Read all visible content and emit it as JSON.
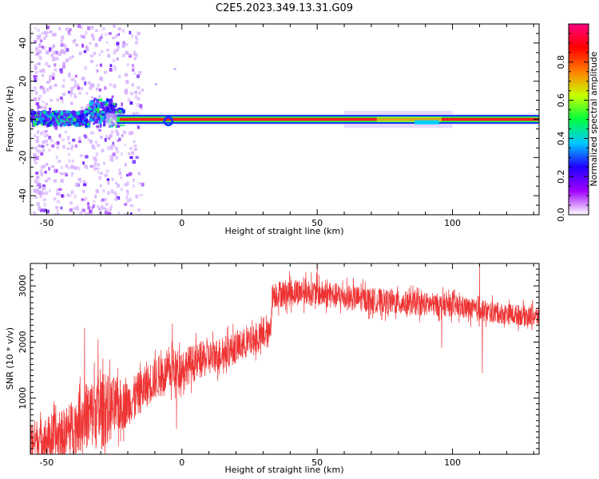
{
  "title": "C2E5.2023.349.13.31.G09",
  "chart_data": [
    {
      "type": "heatmap",
      "xlabel": "Height of straight line (km)",
      "ylabel": "Frequency (Hz)",
      "xlim": [
        -56,
        132
      ],
      "ylim": [
        -50,
        50
      ],
      "xticks": [
        "-50",
        "0",
        "50",
        "100"
      ],
      "yticks": [
        "40",
        "20",
        "0",
        "-20",
        "-40"
      ],
      "colorbar": {
        "label": "Normalized spectral amplitude",
        "range": [
          0.0,
          1.0
        ],
        "ticks": [
          "0.0",
          "0.2",
          "0.4",
          "0.6",
          "0.8"
        ],
        "colors": [
          "#ffffff",
          "#a000ff",
          "#2000ff",
          "#00c8ff",
          "#00ff40",
          "#c8ff00",
          "#ff8000",
          "#ff0000",
          "#ff0080"
        ]
      },
      "signal_band": {
        "frequency_hz": 0,
        "half_width_hz": 1.5,
        "start_km": -24,
        "end_km": 132
      },
      "grid": false
    },
    {
      "type": "line",
      "xlabel": "Height of straight line (km)",
      "ylabel": "SNR (10 * v/v)",
      "xlim": [
        -56,
        132
      ],
      "ylim": [
        0,
        3400
      ],
      "xticks": [
        "-50",
        "0",
        "50",
        "100"
      ],
      "yticks": [
        "3000",
        "2000",
        "1000"
      ],
      "color": "#ee3333",
      "trend": [
        {
          "x": -56,
          "y": 250
        },
        {
          "x": -45,
          "y": 300
        },
        {
          "x": -35,
          "y": 700
        },
        {
          "x": -20,
          "y": 900
        },
        {
          "x": -10,
          "y": 1350
        },
        {
          "x": 0,
          "y": 1550
        },
        {
          "x": 15,
          "y": 1800
        },
        {
          "x": 25,
          "y": 2000
        },
        {
          "x": 32.5,
          "y": 2150
        },
        {
          "x": 33.5,
          "y": 2850
        },
        {
          "x": 45,
          "y": 2900
        },
        {
          "x": 60,
          "y": 2800
        },
        {
          "x": 80,
          "y": 2700
        },
        {
          "x": 100,
          "y": 2650
        },
        {
          "x": 110,
          "y": 2550
        },
        {
          "x": 120,
          "y": 2500
        },
        {
          "x": 132,
          "y": 2450
        }
      ],
      "noise_amplitude": [
        {
          "x": -56,
          "y": 350
        },
        {
          "x": -40,
          "y": 500
        },
        {
          "x": -30,
          "y": 700
        },
        {
          "x": -20,
          "y": 400
        },
        {
          "x": 0,
          "y": 350
        },
        {
          "x": 32,
          "y": 250
        },
        {
          "x": 34,
          "y": 250
        },
        {
          "x": 132,
          "y": 180
        }
      ],
      "spikes": [
        {
          "x": -36,
          "y": 2250
        },
        {
          "x": -31,
          "y": 2050
        },
        {
          "x": -3.5,
          "y": 2330
        },
        {
          "x": -2,
          "y": 450
        },
        {
          "x": 50,
          "y": 3380
        },
        {
          "x": 96,
          "y": 1900
        },
        {
          "x": 110,
          "y": 3350
        },
        {
          "x": 111,
          "y": 1450
        }
      ],
      "grid": false
    }
  ]
}
